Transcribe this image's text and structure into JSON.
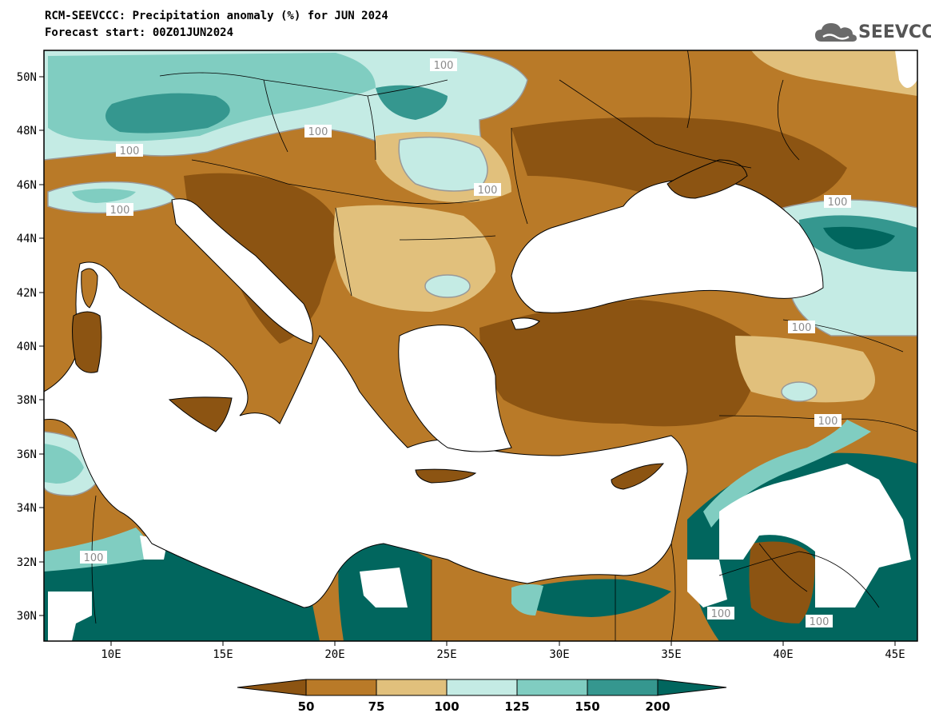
{
  "header": {
    "title": "RCM-SEEVCCC: Precipitation anomaly (%) for JUN 2024",
    "subtitle": "Forecast start: 00Z01JUN2024"
  },
  "logo": {
    "text": "SEEVCCC",
    "icon": "cloud-icon"
  },
  "map": {
    "extent": {
      "lon": [
        7,
        46
      ],
      "lat": [
        29,
        51
      ]
    },
    "lat_ticks": [
      "50N",
      "48N",
      "46N",
      "44N",
      "42N",
      "40N",
      "38N",
      "36N",
      "34N",
      "32N",
      "30N"
    ],
    "lon_ticks": [
      "10E",
      "15E",
      "20E",
      "25E",
      "30E",
      "35E",
      "40E",
      "45E"
    ],
    "contour_label": "100"
  },
  "colorbar": {
    "labels": [
      "50",
      "75",
      "100",
      "125",
      "150",
      "200"
    ],
    "colors": [
      "#8c5412",
      "#b97a28",
      "#e1c07c",
      "#c4ebe4",
      "#80cdc1",
      "#35978f",
      "#01665e"
    ]
  }
}
